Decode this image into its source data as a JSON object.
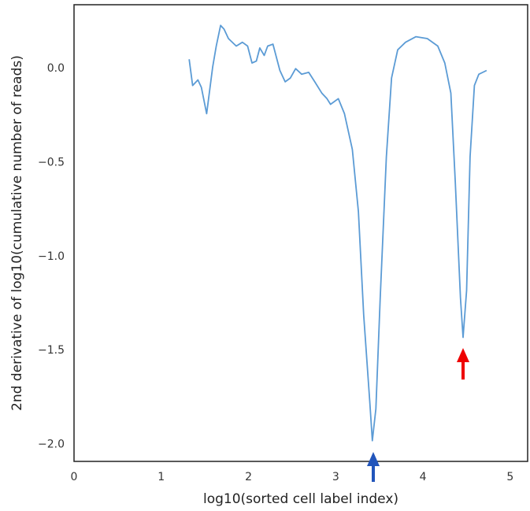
{
  "chart_data": {
    "type": "line",
    "xlabel": "log10(sorted cell label index)",
    "ylabel": "2nd derivative of log10(cumulative number of reads)",
    "xlim": [
      0,
      5.2
    ],
    "ylim": [
      -2.09,
      0.34
    ],
    "xticks": [
      0,
      1,
      2,
      3,
      4,
      5
    ],
    "yticks": [
      {
        "value": -2.0,
        "label": "−2.0"
      },
      {
        "value": -1.5,
        "label": "−1.5"
      },
      {
        "value": -1.0,
        "label": "−1.0"
      },
      {
        "value": -0.5,
        "label": "−0.5"
      },
      {
        "value": 0,
        "label": "0.0"
      }
    ],
    "grid": false,
    "series": [
      {
        "color": "#5b9bd5",
        "x": [
          1.32,
          1.36,
          1.42,
          1.46,
          1.52,
          1.59,
          1.63,
          1.68,
          1.72,
          1.77,
          1.86,
          1.93,
          1.99,
          2.04,
          2.09,
          2.13,
          2.18,
          2.22,
          2.28,
          2.36,
          2.42,
          2.48,
          2.54,
          2.61,
          2.69,
          2.76,
          2.84,
          2.9,
          2.94,
          3.03,
          3.1,
          3.19,
          3.26,
          3.32,
          3.39,
          3.42,
          3.46,
          3.51,
          3.58,
          3.64,
          3.71,
          3.8,
          3.92,
          4.05,
          4.17,
          4.25,
          4.32,
          4.37,
          4.43,
          4.46,
          4.5,
          4.54,
          4.59,
          4.64,
          4.73
        ],
        "values": [
          0.05,
          -0.09,
          -0.06,
          -0.1,
          -0.24,
          0.01,
          0.12,
          0.23,
          0.21,
          0.16,
          0.12,
          0.14,
          0.12,
          0.03,
          0.04,
          0.11,
          0.07,
          0.12,
          0.13,
          -0.01,
          -0.07,
          -0.05,
          0.0,
          -0.03,
          -0.02,
          -0.07,
          -0.13,
          -0.16,
          -0.19,
          -0.16,
          -0.24,
          -0.43,
          -0.76,
          -1.31,
          -1.77,
          -1.98,
          -1.81,
          -1.22,
          -0.47,
          -0.05,
          0.1,
          0.14,
          0.17,
          0.16,
          0.12,
          0.03,
          -0.13,
          -0.6,
          -1.22,
          -1.43,
          -1.18,
          -0.47,
          -0.09,
          -0.03,
          -0.01
        ]
      }
    ]
  }
}
